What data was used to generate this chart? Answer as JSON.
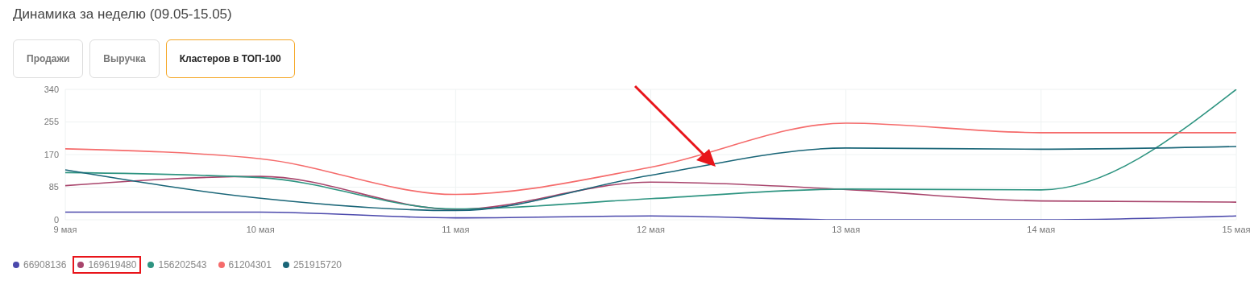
{
  "chart_data": {
    "type": "line",
    "title": "Динамика за неделю (09.05-15.05)",
    "annotations": [
      "Продажи",
      "Выручка",
      "Кластеров в ТОП-100"
    ],
    "categories": [
      "9 мая",
      "10 мая",
      "11 мая",
      "12 мая",
      "13 мая",
      "14 мая",
      "15 мая"
    ],
    "series": [
      {
        "name": "66908136",
        "color": "#4b49ac",
        "values": [
          20,
          20,
          5,
          10,
          0,
          0,
          10
        ]
      },
      {
        "name": "169619480",
        "color": "#a8456c",
        "values": [
          89,
          113,
          27,
          98,
          79,
          49,
          46
        ]
      },
      {
        "name": "156202543",
        "color": "#2e9481",
        "values": [
          123,
          110,
          28,
          55,
          80,
          78,
          340
        ]
      },
      {
        "name": "61204301",
        "color": "#f56b6b",
        "values": [
          185,
          159,
          66,
          137,
          252,
          227,
          227
        ]
      },
      {
        "name": "251915720",
        "color": "#1a6678",
        "values": [
          130,
          56,
          24,
          116,
          187,
          184,
          191
        ]
      }
    ],
    "ylim": [
      0,
      340
    ],
    "yticks": [
      0,
      85,
      170,
      255,
      340
    ],
    "grid": true,
    "legend": "bottom left",
    "marker": "none",
    "line_style": "solid"
  }
}
